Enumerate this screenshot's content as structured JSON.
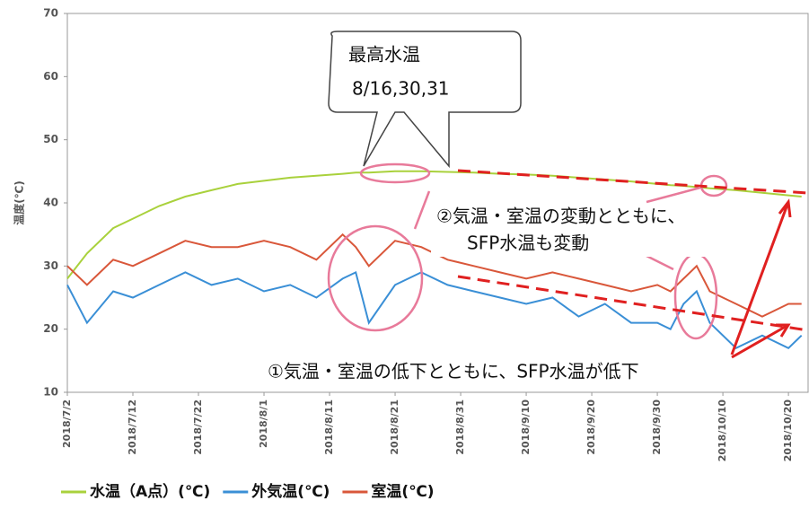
{
  "chart_data": {
    "type": "line",
    "ylabel": "温度(℃)",
    "x": [
      "2018/7/2",
      "2018/7/5",
      "2018/7/9",
      "2018/7/12",
      "2018/7/16",
      "2018/7/20",
      "2018/7/24",
      "2018/7/28",
      "2018/8/1",
      "2018/8/5",
      "2018/8/9",
      "2018/8/13",
      "2018/8/15",
      "2018/8/17",
      "2018/8/21",
      "2018/8/25",
      "2018/8/29",
      "2018/9/2",
      "2018/9/6",
      "2018/9/10",
      "2018/9/14",
      "2018/9/18",
      "2018/9/22",
      "2018/9/26",
      "2018/9/30",
      "2018/10/2",
      "2018/10/4",
      "2018/10/6",
      "2018/10/8",
      "2018/10/12",
      "2018/10/16",
      "2018/10/20",
      "2018/10/22"
    ],
    "series": [
      {
        "name": "水温（A点）(℃)",
        "color": "#a9d13c",
        "values": [
          28,
          32,
          36,
          37.5,
          39.5,
          41,
          42,
          43,
          43.5,
          44,
          44.3,
          44.6,
          44.8,
          44.8,
          45,
          45,
          44.9,
          44.8,
          44.6,
          44.5,
          44.3,
          44,
          43.7,
          43.4,
          43,
          42.8,
          42.7,
          42.5,
          42.3,
          42,
          41.6,
          41.2,
          41
        ]
      },
      {
        "name": "外気温(℃)",
        "color": "#3a8fd6",
        "values": [
          27,
          21,
          26,
          25,
          27,
          29,
          27,
          28,
          26,
          27,
          25,
          28,
          29,
          21,
          27,
          29,
          27,
          26,
          25,
          24,
          25,
          22,
          24,
          21,
          21,
          20,
          24,
          26,
          21,
          17,
          19,
          17,
          19
        ]
      },
      {
        "name": "室温(℃)",
        "color": "#d9573a",
        "values": [
          30,
          27,
          31,
          30,
          32,
          34,
          33,
          33,
          34,
          33,
          31,
          35,
          33,
          30,
          34,
          33,
          31,
          30,
          29,
          28,
          29,
          28,
          27,
          26,
          27,
          26,
          28,
          30,
          26,
          24,
          22,
          24,
          24
        ]
      }
    ],
    "xlim": [
      "2018/7/2",
      "2018/10/23"
    ],
    "xticks": [
      "2018/7/2",
      "2018/7/12",
      "2018/7/22",
      "2018/8/1",
      "2018/8/11",
      "2018/8/21",
      "2018/8/31",
      "2018/9/10",
      "2018/9/20",
      "2018/9/30",
      "2018/10/10",
      "2018/10/20"
    ],
    "ylim": [
      10,
      70
    ],
    "yticks": [
      10,
      20,
      30,
      40,
      50,
      60,
      70
    ],
    "annotations": {
      "callout": [
        "最高水温",
        "8/16,30,31"
      ],
      "note2": [
        "②気温・室温の変動とともに、",
        "SFP水温も変動"
      ],
      "note1": "①気温・室温の低下とともに、SFP水温が低下"
    }
  }
}
